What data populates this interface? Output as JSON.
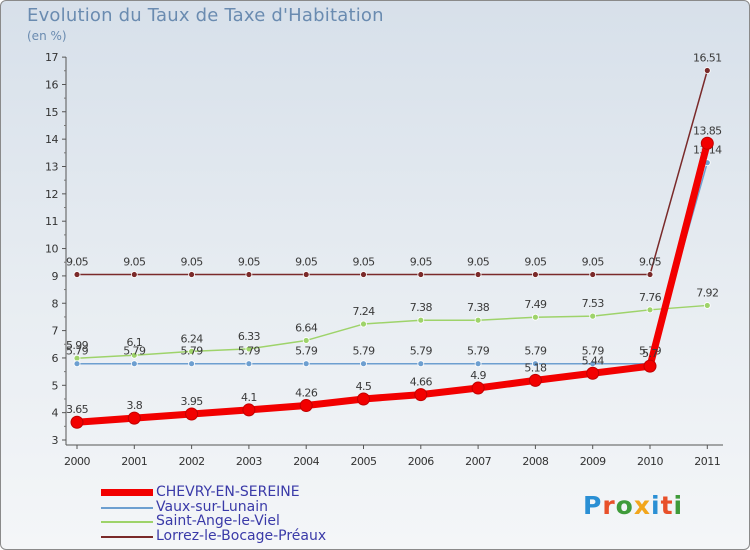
{
  "title": "Evolution du Taux de Taxe d'Habitation",
  "unit": "(en %)",
  "logo": {
    "text": "Proxiti",
    "colors": [
      "#2a8fd4",
      "#e8502a",
      "#3f9b3a",
      "#f2a61c",
      "#2a8fd4",
      "#e8502a",
      "#3f9b3a"
    ]
  },
  "chart_data": {
    "type": "line",
    "title": "Evolution du Taux de Taxe d'Habitation",
    "ylabel": "(en %)",
    "xlabel": "",
    "ylim": [
      3,
      17
    ],
    "yticks": [
      3,
      4,
      5,
      6,
      7,
      8,
      9,
      10,
      11,
      12,
      13,
      14,
      15,
      16,
      17
    ],
    "grid": false,
    "legend_position": "bottom-left",
    "x": [
      "2000",
      "2001",
      "2002",
      "2003",
      "2004",
      "2005",
      "2006",
      "2007",
      "2008",
      "2009",
      "2010",
      "2011"
    ],
    "series": [
      {
        "name": "Lorrez-le-Bocage-Préaux",
        "color": "#7a2a2a",
        "values": [
          9.05,
          9.05,
          9.05,
          9.05,
          9.05,
          9.05,
          9.05,
          9.05,
          9.05,
          9.05,
          9.05,
          16.51
        ],
        "labels": [
          "9.05",
          "9.05",
          "9.05",
          "9.05",
          "9.05",
          "9.05",
          "9.05",
          "9.05",
          "9.05",
          "9.05",
          "9.05",
          "16.51"
        ]
      },
      {
        "name": "Saint-Ange-le-Viel",
        "color": "#9ed36a",
        "values": [
          5.99,
          6.1,
          6.24,
          6.33,
          6.64,
          7.24,
          7.38,
          7.38,
          7.49,
          7.53,
          7.76,
          7.92
        ],
        "labels": [
          "5.99",
          "6.1",
          "6.24",
          "6.33",
          "6.64",
          "7.24",
          "7.38",
          "7.38",
          "7.49",
          "7.53",
          "7.76",
          "7.92"
        ]
      },
      {
        "name": "Vaux-sur-Lunain",
        "color": "#6d9fd0",
        "values": [
          5.79,
          5.79,
          5.79,
          5.79,
          5.79,
          5.79,
          5.79,
          5.79,
          5.79,
          5.79,
          5.79,
          13.14
        ],
        "labels": [
          "5.79",
          "5.79",
          "5.79",
          "5.79",
          "5.79",
          "5.79",
          "5.79",
          "5.79",
          "5.79",
          "5.79",
          "5.79",
          "13.14"
        ]
      },
      {
        "name": "CHEVRY-EN-SEREINE",
        "color": "#f20000",
        "values": [
          3.65,
          3.8,
          3.95,
          4.1,
          4.26,
          4.5,
          4.66,
          4.9,
          5.18,
          5.44,
          5.7,
          13.85
        ],
        "labels": [
          "3.65",
          "3.8",
          "3.95",
          "4.1",
          "4.26",
          "4.5",
          "4.66",
          "4.9",
          "5.18",
          "5.44",
          "5.7",
          "13.85"
        ]
      }
    ],
    "legend": [
      {
        "name": "CHEVRY-EN-SEREINE",
        "color": "#f20000",
        "text_color": "#3a3aa8"
      },
      {
        "name": "Vaux-sur-Lunain",
        "color": "#6d9fd0",
        "text_color": "#3a3aa8"
      },
      {
        "name": "Saint-Ange-le-Viel",
        "color": "#9ed36a",
        "text_color": "#3a3aa8"
      },
      {
        "name": "Lorrez-le-Bocage-Préaux",
        "color": "#7a2a2a",
        "text_color": "#3a3aa8"
      }
    ]
  }
}
